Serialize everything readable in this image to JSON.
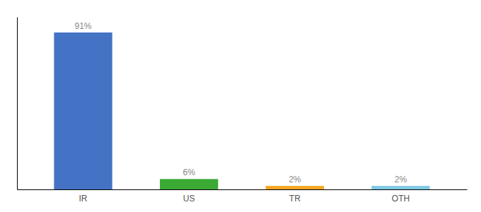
{
  "chart_data": {
    "type": "bar",
    "categories": [
      "IR",
      "US",
      "TR",
      "OTH"
    ],
    "values": [
      91,
      6,
      2,
      2
    ],
    "value_labels": [
      "91%",
      "6%",
      "2%",
      "2%"
    ],
    "colors": [
      "#4472c4",
      "#3aaa35",
      "#f5a623",
      "#7ec8e3"
    ],
    "ylim": [
      0,
      100
    ],
    "data_labels": true,
    "tick_labels": "x",
    "grid": false
  }
}
